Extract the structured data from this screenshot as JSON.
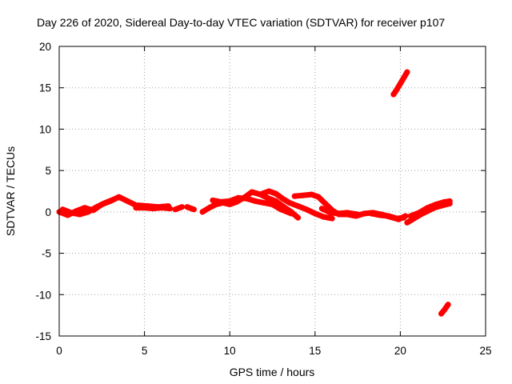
{
  "chart_data": {
    "type": "scatter",
    "title": "Day 226 of 2020, Sidereal Day-to-day VTEC variation (SDTVAR) for receiver p107",
    "xlabel": "GPS time / hours",
    "ylabel": "SDTVAR / TECUs",
    "xlim": [
      0,
      25
    ],
    "ylim": [
      -15,
      20
    ],
    "xticks": [
      0,
      5,
      10,
      15,
      20,
      25
    ],
    "yticks": [
      -15,
      -10,
      -5,
      0,
      5,
      10,
      15,
      20
    ],
    "grid": true,
    "series": [
      {
        "name": "SDTVAR",
        "color": "#ff0000",
        "tracks": [
          [
            [
              0.0,
              0.0
            ],
            [
              0.5,
              -0.4
            ],
            [
              1.0,
              0.1
            ],
            [
              1.5,
              0.5
            ],
            [
              2.0,
              0.2
            ],
            [
              2.5,
              0.9
            ],
            [
              3.0,
              1.3
            ],
            [
              3.5,
              1.8
            ],
            [
              4.0,
              1.3
            ],
            [
              4.4,
              0.9
            ]
          ],
          [
            [
              0.2,
              0.3
            ],
            [
              0.7,
              -0.1
            ],
            [
              1.2,
              -0.3
            ],
            [
              1.7,
              0.0
            ],
            [
              2.2,
              0.6
            ],
            [
              2.7,
              1.1
            ],
            [
              3.2,
              1.5
            ]
          ],
          [
            [
              4.5,
              0.5
            ],
            [
              5.0,
              0.5
            ],
            [
              5.5,
              0.4
            ],
            [
              6.0,
              0.5
            ],
            [
              6.5,
              0.4
            ]
          ],
          [
            [
              4.6,
              0.8
            ],
            [
              5.2,
              0.7
            ],
            [
              5.8,
              0.6
            ],
            [
              6.4,
              0.7
            ]
          ],
          [
            [
              6.8,
              0.3
            ],
            [
              7.2,
              0.6
            ]
          ],
          [
            [
              7.5,
              0.6
            ],
            [
              7.9,
              0.3
            ]
          ],
          [
            [
              8.4,
              0.0
            ],
            [
              8.8,
              0.5
            ],
            [
              9.2,
              0.9
            ],
            [
              9.6,
              1.1
            ],
            [
              10.0,
              0.9
            ],
            [
              10.4,
              1.2
            ],
            [
              10.9,
              1.8
            ],
            [
              11.3,
              2.4
            ],
            [
              11.8,
              2.1
            ],
            [
              12.2,
              1.7
            ],
            [
              12.7,
              1.3
            ],
            [
              13.1,
              0.7
            ],
            [
              13.6,
              0.0
            ],
            [
              14.0,
              -0.7
            ]
          ],
          [
            [
              9.0,
              1.4
            ],
            [
              9.5,
              1.2
            ],
            [
              10.0,
              1.3
            ],
            [
              10.5,
              1.7
            ],
            [
              11.0,
              1.6
            ],
            [
              11.5,
              1.3
            ],
            [
              12.0,
              1.1
            ],
            [
              12.5,
              0.9
            ],
            [
              13.0,
              0.3
            ],
            [
              13.6,
              -0.2
            ]
          ],
          [
            [
              11.9,
              2.2
            ],
            [
              12.3,
              2.5
            ],
            [
              12.7,
              2.2
            ],
            [
              13.1,
              1.6
            ],
            [
              13.5,
              1.1
            ],
            [
              14.0,
              0.7
            ],
            [
              14.5,
              0.3
            ],
            [
              15.0,
              -0.2
            ],
            [
              15.5,
              -0.6
            ],
            [
              16.0,
              -0.8
            ]
          ],
          [
            [
              13.8,
              1.9
            ],
            [
              14.3,
              2.0
            ],
            [
              14.8,
              2.1
            ],
            [
              15.2,
              1.8
            ],
            [
              15.6,
              1.0
            ],
            [
              16.0,
              0.2
            ],
            [
              16.4,
              -0.3
            ],
            [
              16.9,
              -0.3
            ],
            [
              17.4,
              -0.5
            ],
            [
              17.9,
              -0.2
            ],
            [
              18.4,
              -0.1
            ],
            [
              18.9,
              -0.3
            ],
            [
              19.4,
              -0.6
            ],
            [
              19.9,
              -0.9
            ],
            [
              20.3,
              -0.5
            ]
          ],
          [
            [
              15.4,
              0.4
            ],
            [
              15.9,
              -0.1
            ],
            [
              16.4,
              -0.2
            ],
            [
              16.9,
              -0.1
            ],
            [
              17.5,
              -0.3
            ]
          ],
          [
            [
              18.3,
              -0.2
            ],
            [
              18.8,
              -0.4
            ],
            [
              19.3,
              -0.5
            ],
            [
              19.8,
              -0.8
            ],
            [
              20.2,
              -0.7
            ]
          ],
          [
            [
              20.4,
              -1.3
            ],
            [
              20.8,
              -0.8
            ],
            [
              21.2,
              -0.3
            ],
            [
              21.6,
              0.1
            ],
            [
              22.0,
              0.5
            ],
            [
              22.5,
              0.8
            ],
            [
              22.9,
              1.0
            ]
          ],
          [
            [
              20.6,
              -0.5
            ],
            [
              21.1,
              -0.1
            ],
            [
              21.6,
              0.5
            ],
            [
              22.1,
              0.9
            ],
            [
              22.6,
              1.2
            ],
            [
              22.9,
              1.3
            ]
          ],
          [
            [
              19.6,
              14.2
            ],
            [
              19.8,
              14.8
            ],
            [
              20.0,
              15.5
            ],
            [
              20.2,
              16.2
            ],
            [
              20.4,
              16.9
            ]
          ],
          [
            [
              22.4,
              -12.3
            ],
            [
              22.6,
              -11.8
            ],
            [
              22.8,
              -11.2
            ]
          ]
        ]
      }
    ]
  }
}
